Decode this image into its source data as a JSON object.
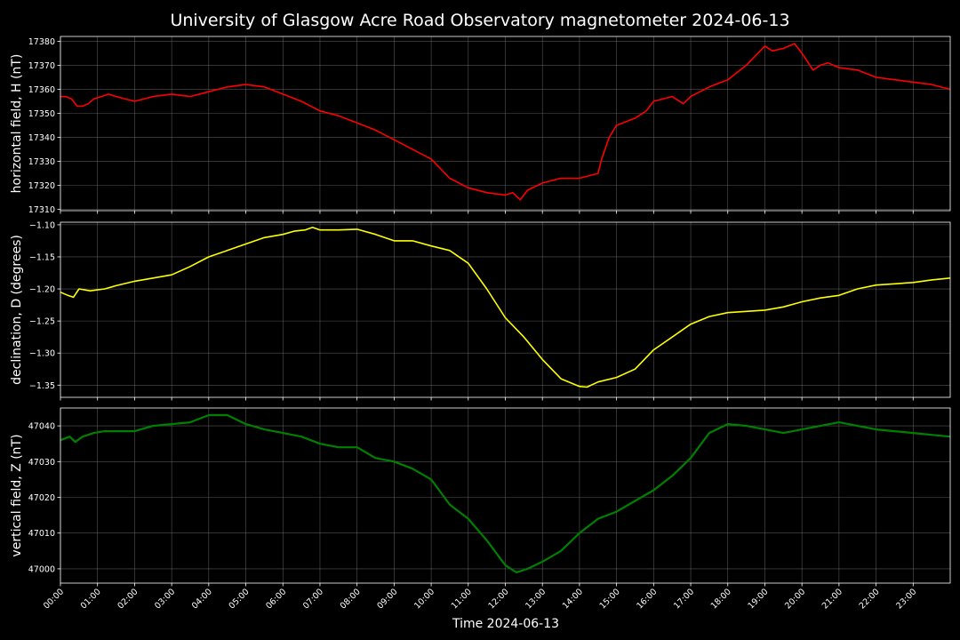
{
  "title": "University of Glasgow Acre Road Observatory magnetometer 2024-06-13",
  "xlabel": "Time 2024-06-13",
  "chart_data": [
    {
      "type": "line",
      "ylabel": "horizontal field, H (nT)",
      "color": "#ff0000",
      "xlim": [
        0,
        24
      ],
      "ylim": [
        17309.5,
        17382
      ],
      "yticks": [
        "17310",
        "17320",
        "17330",
        "17340",
        "17350",
        "17360",
        "17370",
        "17380"
      ],
      "series": [
        {
          "x": [
            0,
            0.15,
            0.3,
            0.45,
            0.6,
            0.75,
            0.9,
            1.1,
            1.3,
            1.5,
            2,
            2.5,
            3,
            3.5,
            4,
            4.5,
            5,
            5.5,
            6,
            6.5,
            7,
            7.5,
            8,
            8.5,
            9,
            9.5,
            10,
            10.5,
            11,
            11.5,
            12,
            12.2,
            12.4,
            12.6,
            13,
            13.5,
            14,
            14.5,
            14.6,
            14.8,
            15,
            15.5,
            15.8,
            16,
            16.5,
            16.8,
            17,
            17.5,
            18,
            18.5,
            19,
            19.2,
            19.5,
            19.8,
            20,
            20.3,
            20.5,
            20.7,
            21,
            21.5,
            22,
            22.5,
            23,
            23.5,
            24
          ],
          "y": [
            17357,
            17357,
            17356,
            17353,
            17353,
            17354,
            17356,
            17357,
            17358,
            17357,
            17355,
            17357,
            17358,
            17357,
            17359,
            17361,
            17362,
            17361,
            17358,
            17355,
            17351,
            17349,
            17346,
            17343,
            17339,
            17335,
            17331,
            17323,
            17319,
            17317,
            17316,
            17317,
            17314,
            17318,
            17321,
            17323,
            17323,
            17325,
            17331,
            17340,
            17345,
            17348,
            17351,
            17355,
            17357,
            17354,
            17357,
            17361,
            17364,
            17370,
            17378,
            17376,
            17377,
            17379,
            17375,
            17368,
            17370,
            17371,
            17369,
            17368,
            17365,
            17364,
            17363,
            17362,
            17360
          ]
        }
      ]
    },
    {
      "type": "line",
      "ylabel": "declination, D (degrees)",
      "color": "#ffff00",
      "xlim": [
        0,
        24
      ],
      "ylim": [
        -1.369,
        -1.096
      ],
      "yticks": [
        "−1.10",
        "−1.15",
        "−1.20",
        "−1.25",
        "−1.30",
        "−1.35"
      ],
      "series": [
        {
          "x": [
            0,
            0.2,
            0.35,
            0.5,
            0.8,
            1.2,
            1.5,
            2,
            2.5,
            3,
            3.5,
            4,
            4.5,
            5,
            5.5,
            6,
            6.3,
            6.6,
            6.8,
            7,
            7.5,
            8,
            8.5,
            9,
            9.5,
            10,
            10.5,
            11,
            11.5,
            12,
            12.5,
            13,
            13.5,
            14,
            14.2,
            14.5,
            15,
            15.5,
            16,
            16.5,
            17,
            17.5,
            18,
            18.5,
            19,
            19.5,
            20,
            20.5,
            21,
            21.5,
            22,
            22.5,
            23,
            23.5,
            24
          ],
          "y": [
            -1.205,
            -1.21,
            -1.213,
            -1.2,
            -1.203,
            -1.2,
            -1.195,
            -1.188,
            -1.183,
            -1.178,
            -1.165,
            -1.15,
            -1.14,
            -1.13,
            -1.12,
            -1.115,
            -1.11,
            -1.108,
            -1.104,
            -1.108,
            -1.108,
            -1.107,
            -1.115,
            -1.125,
            -1.125,
            -1.133,
            -1.14,
            -1.16,
            -1.2,
            -1.245,
            -1.275,
            -1.31,
            -1.34,
            -1.352,
            -1.353,
            -1.345,
            -1.338,
            -1.325,
            -1.295,
            -1.275,
            -1.255,
            -1.243,
            -1.237,
            -1.235,
            -1.233,
            -1.228,
            -1.22,
            -1.214,
            -1.21,
            -1.2,
            -1.194,
            -1.192,
            -1.19,
            -1.186,
            -1.183
          ]
        }
      ]
    },
    {
      "type": "line",
      "ylabel": "vertical field, Z (nT)",
      "color": "#008000",
      "xlim": [
        0,
        24
      ],
      "ylim": [
        46996,
        47045
      ],
      "yticks": [
        "47000",
        "47010",
        "47020",
        "47030",
        "47040"
      ],
      "series": [
        {
          "x": [
            0,
            0.25,
            0.4,
            0.6,
            0.9,
            1.2,
            1.6,
            2,
            2.5,
            3,
            3.5,
            4,
            4.5,
            5,
            5.5,
            6,
            6.5,
            7,
            7.5,
            8,
            8.5,
            9,
            9.5,
            10,
            10.5,
            11,
            11.5,
            12,
            12.3,
            12.6,
            13,
            13.5,
            14,
            14.5,
            15,
            15.5,
            16,
            16.5,
            17,
            17.5,
            18,
            18.5,
            19,
            19.5,
            20,
            20.5,
            21,
            21.5,
            22,
            22.5,
            23,
            23.5,
            24
          ],
          "y": [
            47036,
            47037,
            47035.5,
            47037,
            47038,
            47038.5,
            47038.5,
            47038.5,
            47040,
            47040.5,
            47041,
            47043,
            47043,
            47040.5,
            47039,
            47038,
            47037,
            47035,
            47034,
            47034,
            47031,
            47030,
            47028,
            47025,
            47018,
            47014,
            47008,
            47001,
            46999,
            47000,
            47002,
            47005,
            47010,
            47014,
            47016,
            47019,
            47022,
            47026,
            47031,
            47038,
            47040.5,
            47040,
            47039,
            47038,
            47039,
            47040,
            47041,
            47040,
            47039,
            47038.5,
            47038,
            47037.5,
            47037
          ]
        }
      ]
    }
  ],
  "xticks": [
    "00:00",
    "01:00",
    "02:00",
    "03:00",
    "04:00",
    "05:00",
    "06:00",
    "07:00",
    "08:00",
    "09:00",
    "10:00",
    "11:00",
    "12:00",
    "13:00",
    "14:00",
    "15:00",
    "16:00",
    "17:00",
    "18:00",
    "19:00",
    "20:00",
    "21:00",
    "22:00",
    "23:00"
  ]
}
